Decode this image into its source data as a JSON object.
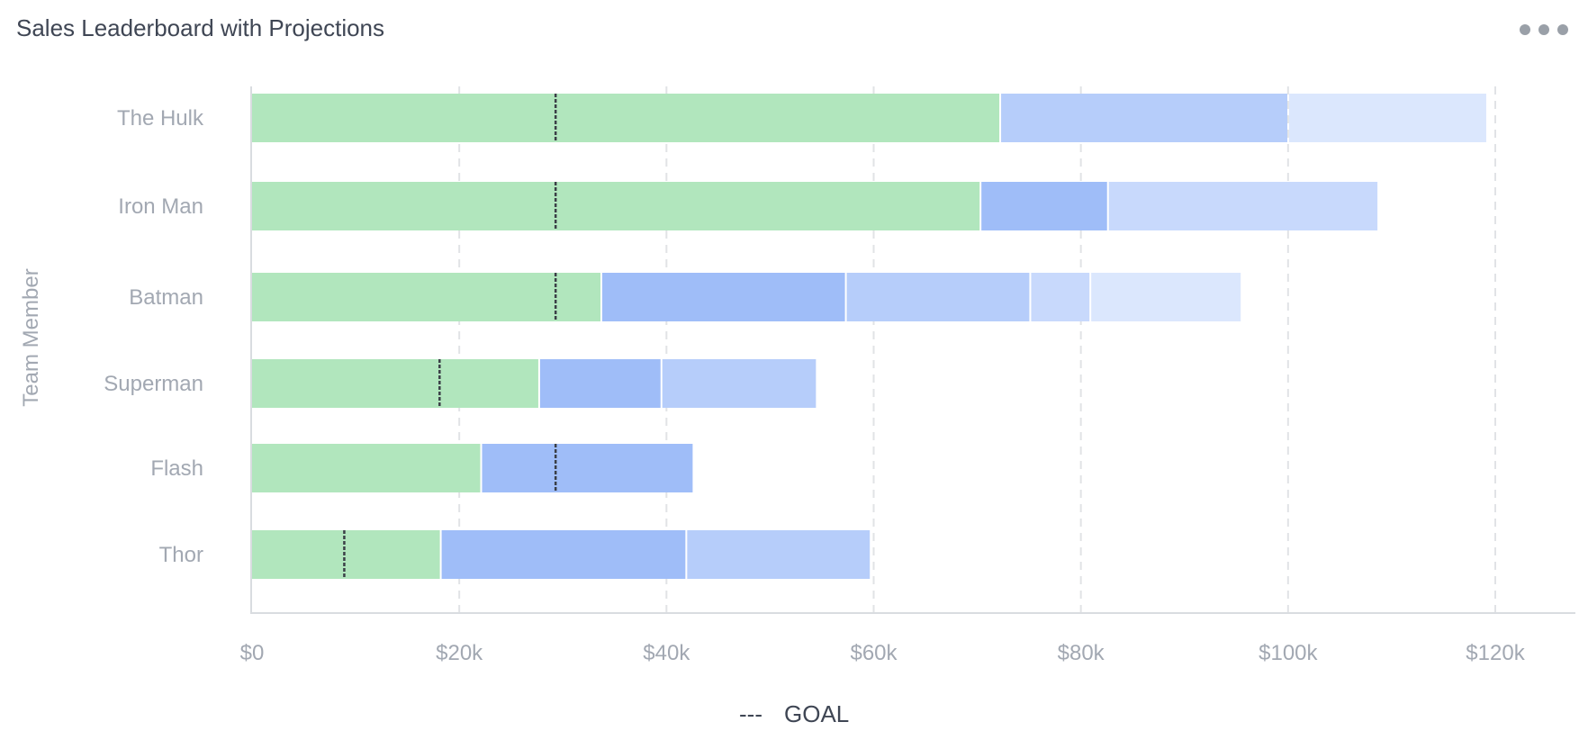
{
  "widget": {
    "title": "Sales Leaderboard with Projections"
  },
  "icons": {
    "menu": "more-dots-icon"
  },
  "colors": {
    "actual": "#b1e6bd",
    "projection_1": "#9fbdf8",
    "projection_2": "#b6cdfa",
    "projection_3": "#c8d9fc",
    "projection_4": "#dbe7fd",
    "goal_marker": "#3b3f47",
    "gridline": "#e1e3e6",
    "axis_line": "#d9dce0"
  },
  "chart_data": {
    "type": "bar",
    "orientation": "horizontal",
    "stacked": true,
    "title": "Sales Leaderboard with Projections",
    "ylabel": "Team Member",
    "xlabel": "",
    "xlim": [
      0,
      120000
    ],
    "x_ticks": [
      {
        "value": 0,
        "label": "$0"
      },
      {
        "value": 20000,
        "label": "$20k"
      },
      {
        "value": 40000,
        "label": "$40k"
      },
      {
        "value": 60000,
        "label": "$60k"
      },
      {
        "value": 80000,
        "label": "$80k"
      },
      {
        "value": 100000,
        "label": "$100k"
      },
      {
        "value": 120000,
        "label": "$120k"
      }
    ],
    "grid": true,
    "legend_position": "bottom",
    "legend": [
      {
        "label": "GOAL",
        "symbol": "---"
      }
    ],
    "rows": [
      {
        "name": "The Hulk",
        "goal": 29300,
        "segments": [
          {
            "kind": "actual",
            "value": 72300
          },
          {
            "kind": "projection_2",
            "value": 27800
          },
          {
            "kind": "projection_4",
            "value": 19200
          }
        ]
      },
      {
        "name": "Iron Man",
        "goal": 29300,
        "segments": [
          {
            "kind": "actual",
            "value": 70400
          },
          {
            "kind": "projection_1",
            "value": 12300
          },
          {
            "kind": "projection_3",
            "value": 26100
          }
        ]
      },
      {
        "name": "Batman",
        "goal": 29300,
        "segments": [
          {
            "kind": "actual",
            "value": 33800
          },
          {
            "kind": "projection_1",
            "value": 23600
          },
          {
            "kind": "projection_2",
            "value": 17800
          },
          {
            "kind": "projection_3",
            "value": 5800
          },
          {
            "kind": "projection_4",
            "value": 14600
          }
        ]
      },
      {
        "name": "Superman",
        "goal": 18100,
        "segments": [
          {
            "kind": "actual",
            "value": 27800
          },
          {
            "kind": "projection_1",
            "value": 11800
          },
          {
            "kind": "projection_2",
            "value": 15000
          }
        ]
      },
      {
        "name": "Flash",
        "goal": 29300,
        "segments": [
          {
            "kind": "actual",
            "value": 22200
          },
          {
            "kind": "projection_1",
            "value": 20500
          }
        ]
      },
      {
        "name": "Thor",
        "goal": 8900,
        "segments": [
          {
            "kind": "actual",
            "value": 18300
          },
          {
            "kind": "projection_1",
            "value": 23700
          },
          {
            "kind": "projection_2",
            "value": 17800
          }
        ]
      }
    ]
  }
}
